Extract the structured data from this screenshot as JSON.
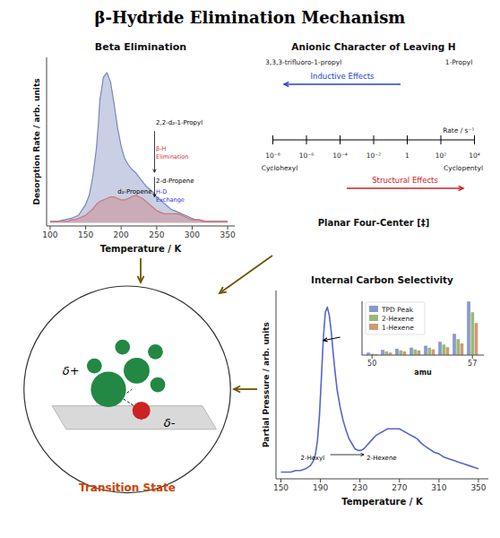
{
  "title": "β-Hydride Elimination Mechanism",
  "chart_data": [
    {
      "type": "area",
      "title": "Beta Elimination",
      "xlabel": "Temperature / K",
      "ylabel": "Desorption Rate / arb. units",
      "xlim": [
        95,
        360
      ],
      "ylim": [
        -0.02,
        1.08
      ],
      "xticks": [
        100,
        150,
        200,
        250,
        300,
        350
      ],
      "tick_labels": "x",
      "series": [
        {
          "color": "#7788bb",
          "x": [
            100,
            110,
            120,
            130,
            140,
            150,
            155,
            160,
            165,
            168,
            170,
            175,
            180,
            185,
            190,
            195,
            200,
            205,
            210,
            215,
            220,
            225,
            230,
            235,
            240,
            245,
            250,
            255,
            260,
            265,
            270,
            275,
            280,
            285,
            290,
            295,
            300,
            305,
            310,
            315,
            320,
            330,
            340,
            350
          ],
          "values": [
            0.01,
            0.01,
            0.02,
            0.03,
            0.05,
            0.12,
            0.18,
            0.3,
            0.48,
            0.65,
            0.8,
            0.95,
            0.98,
            0.92,
            0.78,
            0.62,
            0.5,
            0.42,
            0.38,
            0.35,
            0.33,
            0.3,
            0.27,
            0.24,
            0.22,
            0.2,
            0.17,
            0.15,
            0.13,
            0.11,
            0.09,
            0.08,
            0.07,
            0.06,
            0.05,
            0.04,
            0.03,
            0.02,
            0.02,
            0.01,
            0.01,
            0.01,
            0.01,
            0.01
          ]
        },
        {
          "color": "#cc7777",
          "x": [
            100,
            110,
            120,
            125,
            130,
            135,
            140,
            145,
            150,
            155,
            160,
            165,
            170,
            175,
            180,
            185,
            190,
            195,
            200,
            205,
            210,
            215,
            220,
            225,
            230,
            235,
            240,
            245,
            250,
            255,
            260,
            265,
            270,
            275,
            280,
            285,
            290,
            295,
            300,
            310,
            320,
            330,
            340,
            350
          ],
          "values": [
            0.01,
            0.01,
            0.01,
            0.01,
            0.02,
            0.02,
            0.03,
            0.04,
            0.05,
            0.07,
            0.09,
            0.12,
            0.14,
            0.15,
            0.16,
            0.17,
            0.17,
            0.16,
            0.15,
            0.15,
            0.16,
            0.17,
            0.18,
            0.17,
            0.16,
            0.14,
            0.12,
            0.1,
            0.08,
            0.07,
            0.06,
            0.06,
            0.06,
            0.06,
            0.06,
            0.05,
            0.04,
            0.03,
            0.02,
            0.02,
            0.01,
            0.01,
            0.01,
            0.01
          ]
        }
      ],
      "annotations": [
        {
          "text": "2,2-d₂-1-Propyl"
        },
        {
          "text": "β-H",
          "color": "#cc3333"
        },
        {
          "text": "Elimination",
          "color": "#cc3333"
        },
        {
          "text": "2-d-Propene"
        },
        {
          "text": "H-D",
          "color": "#3333cc"
        },
        {
          "text": "Exchange",
          "color": "#3333cc"
        },
        {
          "text": "d₂-Propene"
        }
      ]
    },
    {
      "type": "scale",
      "title": "Anionic Character of Leaving H",
      "log": "x",
      "xlabel": "Rate / s⁻¹",
      "xlim": [
        1e-08,
        10000
      ],
      "xticks": [
        {
          "value": 1e-08,
          "label": "10⁻⁸"
        },
        {
          "value": 1e-06,
          "label": "10⁻⁶"
        },
        {
          "value": 0.0001,
          "label": "10⁻⁴"
        },
        {
          "value": 0.01,
          "label": "10⁻²"
        },
        1,
        {
          "value": 100,
          "label": "10²"
        },
        {
          "value": 10000,
          "label": "10⁴"
        }
      ],
      "annotations": [
        {
          "text": "Inductive Effects",
          "color": "#2244cc"
        },
        {
          "text": "Structural Effects",
          "color": "#cc2222"
        },
        {
          "text": "3,3,3-trifluoro-1-propyl"
        },
        {
          "text": "1-Propyl"
        },
        {
          "text": "Cyclohexyl"
        },
        {
          "text": "Cyclopentyl"
        },
        {
          "text": "Planar Four-Center [‡]"
        }
      ]
    },
    {
      "type": "line",
      "title": "Internal Carbon Selectivity",
      "xlabel": "Temperature / K",
      "ylabel": "Partial Pressure / arb. units",
      "xlim": [
        145,
        360
      ],
      "ylim": [
        -0.03,
        1.1
      ],
      "xticks": [
        150,
        190,
        230,
        270,
        310,
        350
      ],
      "tick_labels": "x",
      "x": [
        150,
        155,
        160,
        165,
        170,
        175,
        180,
        183,
        185,
        187,
        189,
        191,
        193,
        195,
        197,
        199,
        201,
        203,
        205,
        207,
        210,
        213,
        216,
        219,
        222,
        225,
        228,
        231,
        234,
        237,
        240,
        243,
        246,
        249,
        252,
        255,
        258,
        261,
        264,
        267,
        270,
        273,
        276,
        279,
        282,
        285,
        288,
        291,
        295,
        300,
        305,
        310,
        315,
        320,
        325,
        330,
        335,
        340,
        345,
        350
      ],
      "series": [
        {
          "color": "#5566cc",
          "values": [
            0.01,
            0.01,
            0.01,
            0.02,
            0.02,
            0.03,
            0.05,
            0.08,
            0.12,
            0.2,
            0.35,
            0.58,
            0.82,
            0.97,
            1.0,
            0.95,
            0.85,
            0.72,
            0.6,
            0.5,
            0.4,
            0.32,
            0.26,
            0.21,
            0.18,
            0.15,
            0.14,
            0.14,
            0.15,
            0.17,
            0.19,
            0.21,
            0.23,
            0.24,
            0.25,
            0.26,
            0.27,
            0.27,
            0.27,
            0.27,
            0.27,
            0.26,
            0.25,
            0.24,
            0.23,
            0.22,
            0.21,
            0.19,
            0.17,
            0.15,
            0.13,
            0.12,
            0.1,
            0.09,
            0.08,
            0.07,
            0.06,
            0.05,
            0.04,
            0.03
          ]
        }
      ],
      "annotations": [
        {
          "text": "2-Hexyl"
        },
        {
          "text": "2-Hexene"
        }
      ]
    },
    {
      "type": "bar",
      "xlabel": "amu",
      "x": [
        50,
        51,
        52,
        53,
        54,
        55,
        56,
        57
      ],
      "xlim": [
        49.3,
        57.8
      ],
      "ylim": [
        0,
        1
      ],
      "xticks": [
        50,
        57
      ],
      "tick_labels": "x",
      "legend": "upper left",
      "series": [
        {
          "name": "TPD Peak",
          "color": "#8899cc",
          "values": [
            0.05,
            0.1,
            0.12,
            0.14,
            0.18,
            0.25,
            0.4,
            1.0
          ]
        },
        {
          "name": "2-Hexene",
          "color": "#99bb77",
          "values": [
            0.03,
            0.07,
            0.09,
            0.11,
            0.14,
            0.2,
            0.3,
            0.8
          ]
        },
        {
          "name": "1-Hexene",
          "color": "#cc9977",
          "values": [
            0.02,
            0.05,
            0.07,
            0.09,
            0.11,
            0.15,
            0.22,
            0.6
          ]
        }
      ]
    },
    {
      "type": "diagram",
      "color": "#6b5500",
      "colors": [
        "#228844",
        "#cc2222"
      ],
      "annotations": [
        {
          "text": "δ+"
        },
        {
          "text": "δ-"
        },
        {
          "text": "Transition State",
          "color": "#cc4400"
        }
      ]
    }
  ]
}
